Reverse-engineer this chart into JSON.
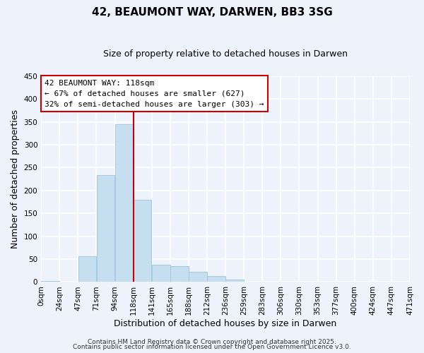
{
  "title": "42, BEAUMONT WAY, DARWEN, BB3 3SG",
  "subtitle": "Size of property relative to detached houses in Darwen",
  "xlabel": "Distribution of detached houses by size in Darwen",
  "ylabel": "Number of detached properties",
  "bar_color": "#c5dff0",
  "bar_edge_color": "#9ec4dc",
  "background_color": "#eef2fb",
  "grid_color": "#ffffff",
  "vline_color": "#cc0000",
  "vline_x": 4,
  "bin_labels": [
    "0sqm",
    "24sqm",
    "47sqm",
    "71sqm",
    "94sqm",
    "118sqm",
    "141sqm",
    "165sqm",
    "188sqm",
    "212sqm",
    "236sqm",
    "259sqm",
    "283sqm",
    "306sqm",
    "330sqm",
    "353sqm",
    "377sqm",
    "400sqm",
    "424sqm",
    "447sqm",
    "471sqm"
  ],
  "counts": [
    2,
    0,
    57,
    234,
    345,
    180,
    38,
    34,
    22,
    13,
    5,
    0,
    0,
    0,
    0,
    0,
    0,
    0,
    0,
    0
  ],
  "ylim": [
    0,
    450
  ],
  "yticks": [
    0,
    50,
    100,
    150,
    200,
    250,
    300,
    350,
    400,
    450
  ],
  "annotation_title": "42 BEAUMONT WAY: 118sqm",
  "annotation_line1": "← 67% of detached houses are smaller (627)",
  "annotation_line2": "32% of semi-detached houses are larger (303) →",
  "annotation_box_color": "#ffffff",
  "annotation_border_color": "#cc0000",
  "footer1": "Contains HM Land Registry data © Crown copyright and database right 2025.",
  "footer2": "Contains public sector information licensed under the Open Government Licence v3.0.",
  "title_fontsize": 11,
  "subtitle_fontsize": 9,
  "axis_label_fontsize": 9,
  "tick_fontsize": 7.5,
  "annotation_fontsize": 8,
  "footer_fontsize": 6.5
}
